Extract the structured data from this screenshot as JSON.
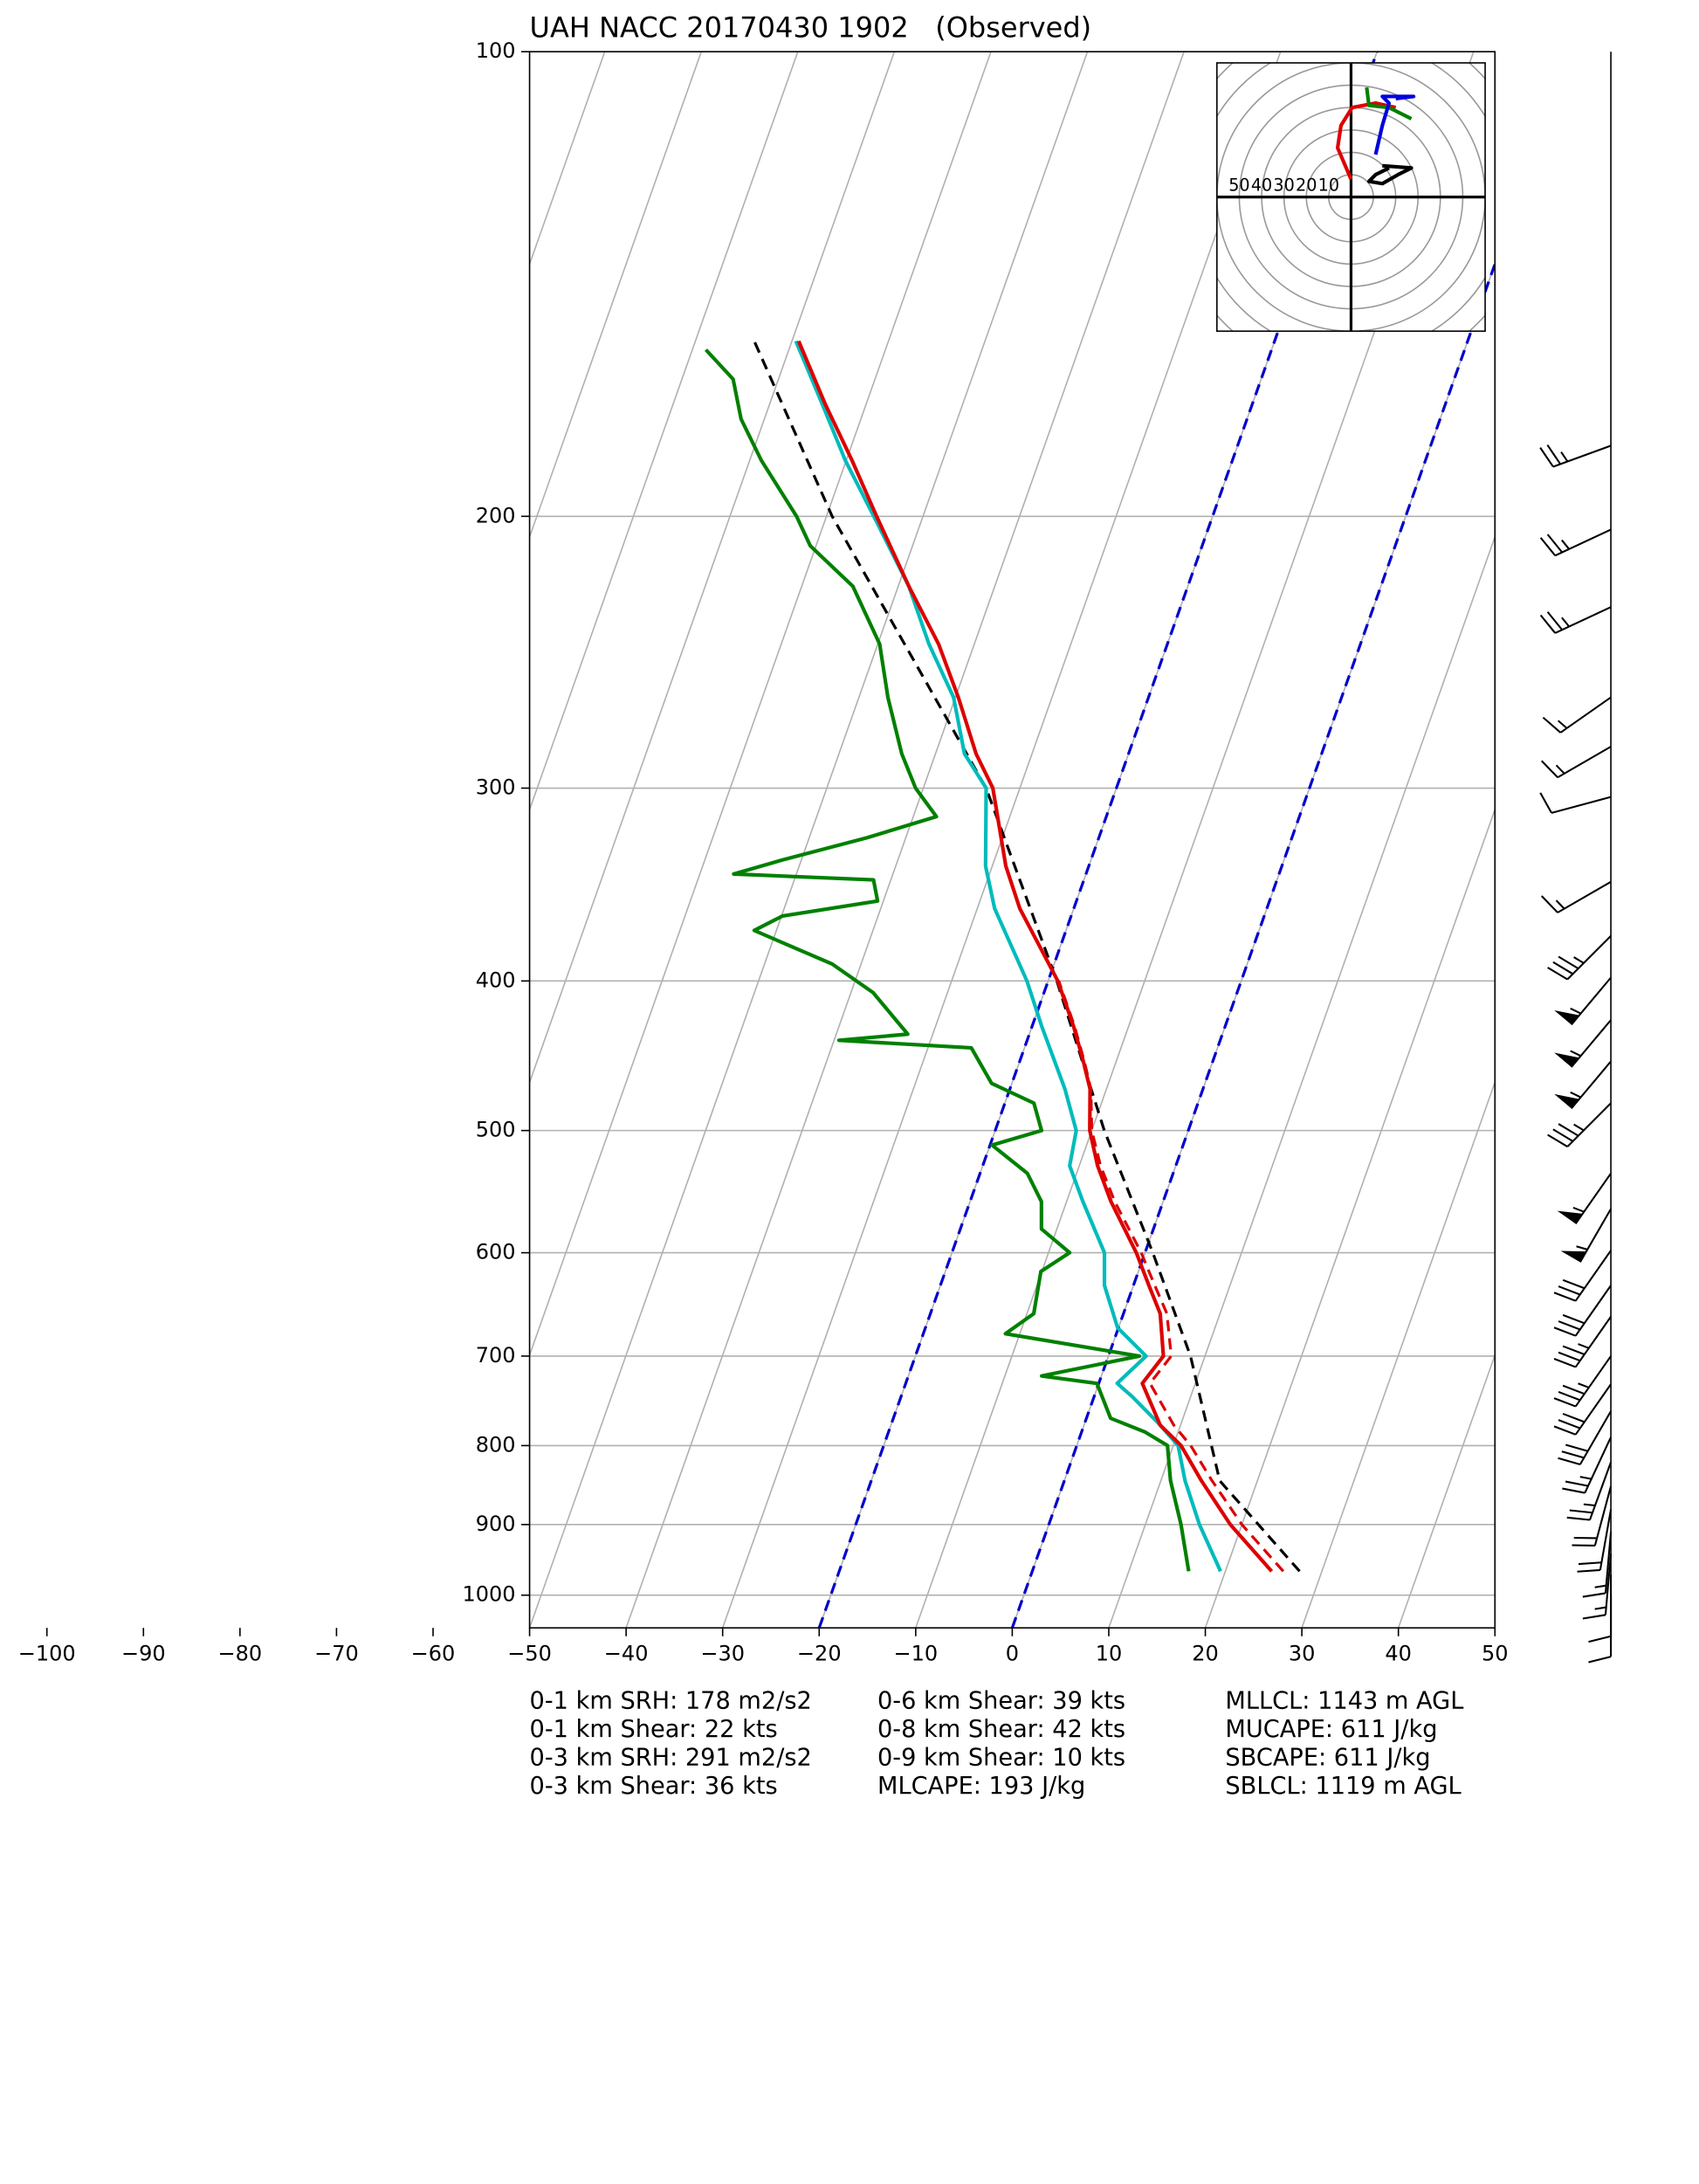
{
  "chart_data": {
    "type": "skewt",
    "title": "UAH NACC 20170430 1902   (Observed)",
    "xlim": [
      -50,
      50
    ],
    "xticks": [
      {
        "value": -100,
        "label": "−100"
      },
      {
        "value": -90,
        "label": "−90"
      },
      {
        "value": -80,
        "label": "−80"
      },
      {
        "value": -70,
        "label": "−70"
      },
      {
        "value": -60,
        "label": "−60"
      },
      {
        "value": -50,
        "label": "−50"
      },
      {
        "value": -40,
        "label": "−40"
      },
      {
        "value": -30,
        "label": "−30"
      },
      {
        "value": -20,
        "label": "−20"
      },
      {
        "value": -10,
        "label": "−10"
      },
      0,
      10,
      20,
      30,
      40,
      50
    ],
    "ylim": [
      1050,
      100
    ],
    "yticks": [
      100,
      200,
      300,
      400,
      500,
      600,
      700,
      800,
      900,
      1000
    ],
    "log_y": true,
    "grid": true,
    "highlight_isotherms": {
      "color": "#0000cc",
      "values": [
        -20,
        0
      ]
    },
    "profiles": [
      {
        "color": "#000000",
        "style": "dashed",
        "pressure": [
          965,
          843,
          700,
          600,
          500,
          400,
          300,
          200,
          154
        ],
        "values": [
          27.7,
          16.1,
          8.5,
          0.8,
          -8.7,
          -19.1,
          -33.5,
          -59.4,
          -73.9
        ]
      },
      {
        "color": "#dd0000",
        "style": "dashed",
        "pressure": [
          965,
          900,
          843,
          800,
          776,
          729,
          700,
          657,
          630,
          600,
          556,
          527,
          500,
          470,
          451,
          428,
          400
        ],
        "values": [
          26.0,
          20.0,
          15.3,
          11.8,
          9.3,
          5.3,
          6.5,
          4.5,
          2.2,
          -0.4,
          -5.0,
          -7.8,
          -10.0,
          -11.6,
          -13.3,
          -15.6,
          -18.9
        ]
      },
      {
        "color": "#00bbbb",
        "style": "solid",
        "pressure": [
          965,
          900,
          843,
          800,
          776,
          744,
          729,
          700,
          671,
          630,
          600,
          556,
          527,
          500,
          470,
          428,
          400,
          359,
          337,
          300,
          285,
          262,
          242,
          222,
          200,
          184,
          169,
          154
        ],
        "values": [
          19.5,
          15.6,
          12.5,
          10.5,
          7.9,
          4.0,
          1.9,
          3.9,
          -0.1,
          -3.0,
          -4.2,
          -8.3,
          -11.0,
          -11.6,
          -14.3,
          -19.0,
          -22.2,
          -28.2,
          -30.7,
          -33.5,
          -37.0,
          -40.2,
          -44.7,
          -48.9,
          -55.1,
          -60.1,
          -64.6,
          -69.6
        ]
      },
      {
        "color": "#dd0000",
        "style": "solid",
        "pressure": [
          965,
          900,
          843,
          800,
          776,
          729,
          700,
          657,
          630,
          600,
          556,
          527,
          500,
          470,
          451,
          428,
          400,
          359,
          337,
          300,
          285,
          262,
          242,
          222,
          200,
          184,
          169,
          154
        ],
        "values": [
          24.8,
          18.8,
          14.2,
          10.8,
          7.9,
          4.5,
          5.7,
          3.8,
          1.6,
          -0.9,
          -5.4,
          -8.1,
          -10.2,
          -11.7,
          -13.4,
          -15.7,
          -19.0,
          -25.6,
          -28.6,
          -32.8,
          -35.8,
          -39.7,
          -43.7,
          -48.9,
          -54.8,
          -59.4,
          -64.3,
          -69.3
        ]
      },
      {
        "color": "#008000",
        "style": "solid",
        "pressure": [
          965,
          900,
          843,
          800,
          784,
          768,
          729,
          721,
          700,
          677,
          657,
          617,
          600,
          579,
          556,
          533,
          511,
          500,
          480,
          466,
          442,
          437,
          433,
          407,
          390,
          371,
          363,
          355,
          344,
          341,
          334,
          323,
          313,
          300,
          285,
          262,
          242,
          222,
          209,
          200,
          184,
          173,
          163,
          156
        ],
        "values": [
          16.2,
          13.7,
          11.0,
          9.4,
          6.6,
          2.5,
          -0.2,
          -6.2,
          3.2,
          -11.5,
          -9.3,
          -10.1,
          -7.8,
          -11.6,
          -12.6,
          -15.1,
          -19.8,
          -15.2,
          -17.0,
          -22.1,
          -25.5,
          -39.5,
          -32.6,
          -37.7,
          -43.0,
          -52.3,
          -49.9,
          -40.6,
          -41.8,
          -56.5,
          -52.0,
          -44.0,
          -37.6,
          -40.8,
          -43.5,
          -47.0,
          -49.8,
          -54.7,
          -60.6,
          -63.1,
          -68.8,
          -72.4,
          -74.7,
          -78.6
        ]
      }
    ],
    "wind": {
      "pressure": [
        180,
        204,
        229,
        262,
        282,
        304,
        345,
        374,
        398,
        424,
        451,
        480,
        533,
        562,
        598,
        630,
        660,
        700,
        730,
        760,
        790,
        820,
        850,
        880,
        910,
        940,
        970,
        1000
      ],
      "speed": [
        25,
        25,
        25,
        15,
        15,
        10,
        15,
        35,
        55,
        55,
        55,
        35,
        55,
        55,
        30,
        30,
        35,
        35,
        30,
        30,
        25,
        25,
        20,
        20,
        15,
        15,
        10,
        10
      ],
      "direction": [
        250,
        245,
        245,
        235,
        240,
        255,
        240,
        225,
        220,
        220,
        220,
        225,
        215,
        210,
        215,
        215,
        215,
        215,
        215,
        210,
        205,
        200,
        195,
        190,
        185,
        185,
        180,
        180
      ]
    },
    "hodograph": {
      "lim": [
        -60,
        60
      ],
      "rings": [
        50,
        40,
        30,
        20,
        10
      ],
      "series": [
        {
          "color": "#dd0000",
          "u": [
            0,
            -6,
            -4.5,
            0.5,
            11,
            20
          ],
          "v": [
            8,
            22,
            32,
            40,
            42,
            40
          ]
        },
        {
          "color": "#008000",
          "u": [
            7,
            8,
            17,
            27
          ],
          "v": [
            49,
            41,
            40,
            35
          ]
        },
        {
          "color": "#0000dd",
          "u": [
            11,
            14,
            17,
            14,
            28,
            20
          ],
          "v": [
            19,
            32,
            42,
            45,
            45,
            44
          ]
        },
        {
          "color": "#000000",
          "u": [
            17,
            11,
            8,
            14,
            21,
            27,
            14
          ],
          "v": [
            13,
            10,
            7,
            6,
            10,
            13,
            14
          ]
        }
      ]
    },
    "indices": [
      [
        "0-1 km SRH: 178 m2/s2",
        "0-1 km Shear: 22 kts",
        "0-3 km SRH: 291 m2/s2",
        "0-3 km Shear: 36 kts"
      ],
      [
        "0-6 km Shear: 39 kts",
        "0-8 km Shear: 42 kts",
        "0-9 km Shear: 10 kts",
        "MLCAPE: 193 J/kg"
      ],
      [
        "MLLCL: 1143 m AGL",
        "MUCAPE: 611 J/kg",
        "SBCAPE: 611 J/kg",
        "SBLCL: 1119 m AGL"
      ]
    ]
  }
}
